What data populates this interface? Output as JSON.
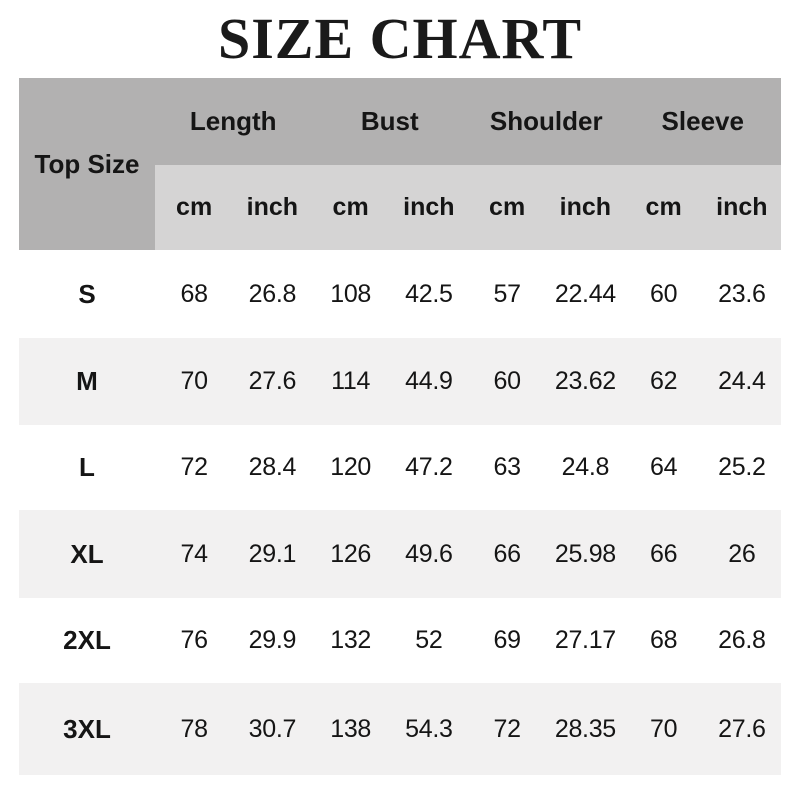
{
  "title": "SIZE CHART",
  "colors": {
    "title_color": "#1a1a1a",
    "header_dark": "#b2b1b1",
    "header_mid": "#d5d4d4",
    "row_alt": "#f2f1f1",
    "row_white": "#ffffff",
    "text": "#151515"
  },
  "table": {
    "top_size_label": "Top Size",
    "groups": [
      {
        "label": "Length"
      },
      {
        "label": "Bust"
      },
      {
        "label": "Shoulder"
      },
      {
        "label": "Sleeve"
      }
    ],
    "units": [
      "cm",
      "inch",
      "cm",
      "inch",
      "cm",
      "inch",
      "cm",
      "inch"
    ],
    "rows": [
      {
        "size": "S",
        "values": [
          "68",
          "26.8",
          "108",
          "42.5",
          "57",
          "22.44",
          "60",
          "23.6"
        ]
      },
      {
        "size": "M",
        "values": [
          "70",
          "27.6",
          "114",
          "44.9",
          "60",
          "23.62",
          "62",
          "24.4"
        ]
      },
      {
        "size": "L",
        "values": [
          "72",
          "28.4",
          "120",
          "47.2",
          "63",
          "24.8",
          "64",
          "25.2"
        ]
      },
      {
        "size": "XL",
        "values": [
          "74",
          "29.1",
          "126",
          "49.6",
          "66",
          "25.98",
          "66",
          "26"
        ]
      },
      {
        "size": "2XL",
        "values": [
          "76",
          "29.9",
          "132",
          "52",
          "69",
          "27.17",
          "68",
          "26.8"
        ]
      },
      {
        "size": "3XL",
        "values": [
          "78",
          "30.7",
          "138",
          "54.3",
          "72",
          "28.35",
          "70",
          "27.6"
        ]
      }
    ]
  },
  "chart_data": {
    "type": "table",
    "title": "SIZE CHART",
    "columns": [
      "Top Size",
      "Length (cm)",
      "Length (inch)",
      "Bust (cm)",
      "Bust (inch)",
      "Shoulder (cm)",
      "Shoulder (inch)",
      "Sleeve (cm)",
      "Sleeve (inch)"
    ],
    "rows": [
      [
        "S",
        68,
        26.8,
        108,
        42.5,
        57,
        22.44,
        60,
        23.6
      ],
      [
        "M",
        70,
        27.6,
        114,
        44.9,
        60,
        23.62,
        62,
        24.4
      ],
      [
        "L",
        72,
        28.4,
        120,
        47.2,
        63,
        24.8,
        64,
        25.2
      ],
      [
        "XL",
        74,
        29.1,
        126,
        49.6,
        66,
        25.98,
        66,
        26
      ],
      [
        "2XL",
        76,
        29.9,
        132,
        52,
        69,
        27.17,
        68,
        26.8
      ],
      [
        "3XL",
        78,
        30.7,
        138,
        54.3,
        72,
        28.35,
        70,
        27.6
      ]
    ]
  }
}
